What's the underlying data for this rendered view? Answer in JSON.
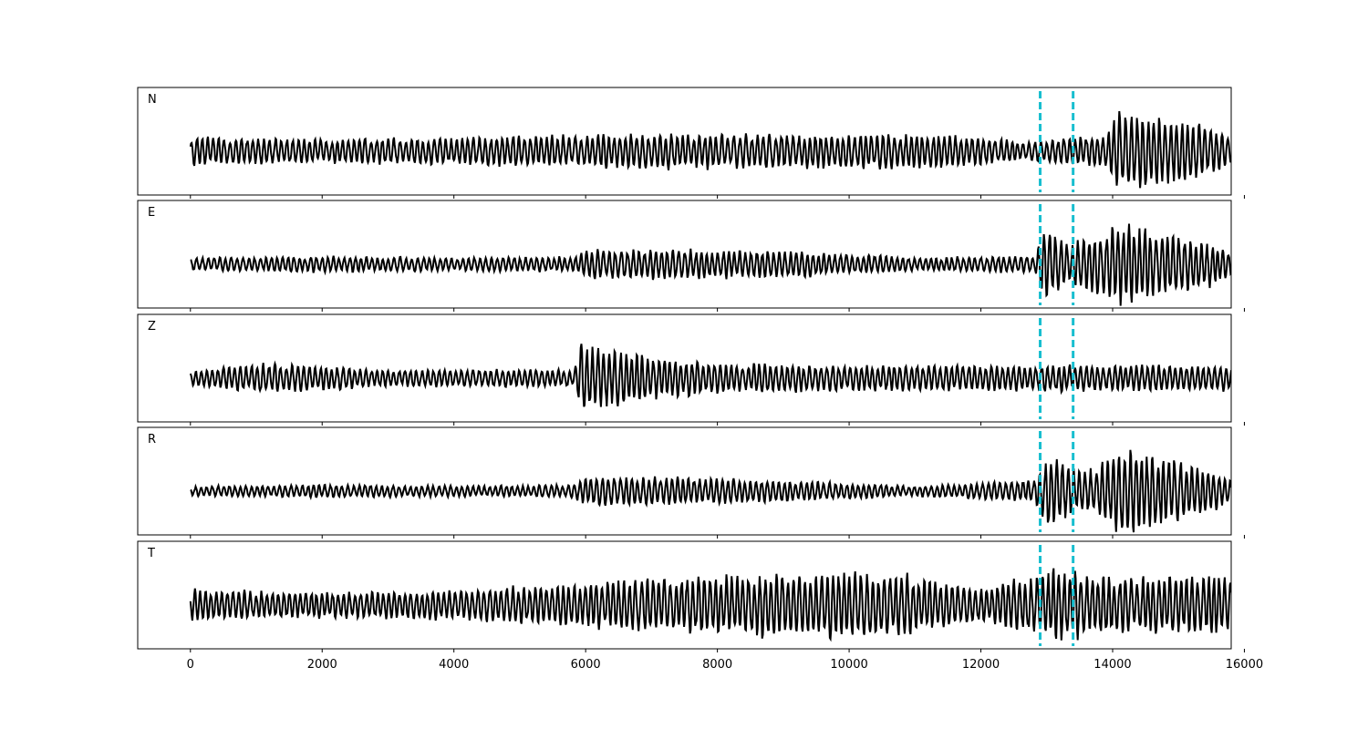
{
  "chart_data": {
    "type": "line",
    "title": "",
    "xlabel": "",
    "ylabel": "",
    "xlim": [
      -800,
      15800
    ],
    "x_ticks": [
      0,
      2000,
      4000,
      6000,
      8000,
      10000,
      12000,
      14000,
      16000
    ],
    "x_tick_labels": [
      "0",
      "2000",
      "4000",
      "6000",
      "8000",
      "10000",
      "12000",
      "14000",
      "16000"
    ],
    "sample_range": [
      0,
      15800
    ],
    "ylim": [
      -1,
      1
    ],
    "grid": false,
    "line_color": "#000000",
    "marker_color": "#17BECF",
    "vertical_markers": [
      12900,
      13400
    ],
    "panels": [
      {
        "label": "N",
        "segments": [
          {
            "x": [
              0,
              2000,
              4000,
              5800,
              7000,
              9000,
              11000,
              12800,
              13900,
              14100,
              15300,
              15800
            ],
            "amplitude": [
              0.32,
              0.28,
              0.32,
              0.38,
              0.4,
              0.38,
              0.42,
              0.22,
              0.4,
              0.95,
              0.62,
              0.3
            ]
          }
        ]
      },
      {
        "label": "E",
        "segments": [
          {
            "x": [
              0,
              2000,
              4000,
              5800,
              6000,
              7000,
              9000,
              11000,
              12800,
              12950,
              13300,
              14150,
              15500,
              15800
            ],
            "amplitude": [
              0.15,
              0.18,
              0.15,
              0.18,
              0.35,
              0.35,
              0.3,
              0.15,
              0.2,
              0.9,
              0.45,
              0.9,
              0.5,
              0.25
            ]
          }
        ]
      },
      {
        "label": "Z",
        "segments": [
          {
            "x": [
              0,
              1000,
              3000,
              5800,
              5950,
              6200,
              7000,
              8000,
              10000,
              12000,
              13000,
              15800
            ],
            "amplitude": [
              0.15,
              0.35,
              0.2,
              0.2,
              0.95,
              0.7,
              0.5,
              0.35,
              0.3,
              0.3,
              0.3,
              0.3
            ]
          }
        ]
      },
      {
        "label": "R",
        "segments": [
          {
            "x": [
              0,
              2000,
              4000,
              5800,
              6000,
              7000,
              9000,
              11000,
              12800,
              13000,
              13600,
              14200,
              15500,
              15800
            ],
            "amplitude": [
              0.12,
              0.15,
              0.12,
              0.15,
              0.35,
              0.35,
              0.25,
              0.12,
              0.25,
              0.85,
              0.45,
              1.0,
              0.5,
              0.2
            ]
          }
        ]
      },
      {
        "label": "T",
        "segments": [
          {
            "x": [
              0,
              2000,
              4000,
              6000,
              7000,
              9000,
              10500,
              12000,
              13000,
              14000,
              15800
            ],
            "amplitude": [
              0.35,
              0.3,
              0.35,
              0.5,
              0.65,
              0.75,
              0.75,
              0.4,
              0.8,
              0.65,
              0.7
            ]
          }
        ]
      }
    ]
  }
}
